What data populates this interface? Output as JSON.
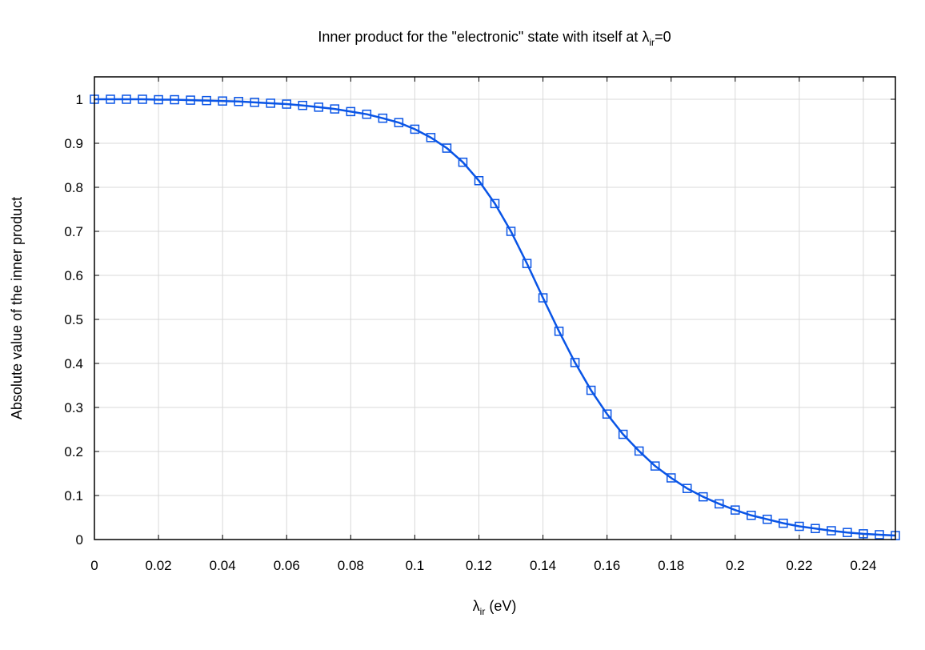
{
  "chart_data": {
    "type": "line",
    "title": {
      "pre": "Inner product for the \"electronic\" state with itself at λ",
      "sub": "ir",
      "post": "=0"
    },
    "xlabel": {
      "pre": "λ",
      "sub": "ir",
      "post": " (eV)"
    },
    "ylabel": "Absolute value of the inner product",
    "xlim": [
      0,
      0.25
    ],
    "ylim": [
      0,
      1.05
    ],
    "grid": true,
    "legend": "none",
    "x_ticks": [
      "0",
      "0.02",
      "0.04",
      "0.06",
      "0.08",
      "0.1",
      "0.12",
      "0.14",
      "0.16",
      "0.18",
      "0.2",
      "0.22",
      "0.24"
    ],
    "y_ticks": [
      "0",
      "0.1",
      "0.2",
      "0.3",
      "0.4",
      "0.5",
      "0.6",
      "0.7",
      "0.8",
      "0.9",
      "1"
    ],
    "series": [
      {
        "color": "#0a55e6",
        "marker": "square-open",
        "line": "solid",
        "x": [
          0,
          0.005,
          0.01,
          0.015,
          0.02,
          0.025,
          0.03,
          0.035,
          0.04,
          0.045,
          0.05,
          0.055,
          0.06,
          0.065,
          0.07,
          0.075,
          0.08,
          0.085,
          0.09,
          0.095,
          0.1,
          0.105,
          0.11,
          0.115,
          0.12,
          0.125,
          0.13,
          0.135,
          0.14,
          0.145,
          0.15,
          0.155,
          0.16,
          0.165,
          0.17,
          0.175,
          0.18,
          0.185,
          0.19,
          0.195,
          0.2,
          0.205,
          0.21,
          0.215,
          0.22,
          0.225,
          0.23,
          0.235,
          0.24,
          0.245,
          0.25
        ],
        "y": [
          1.0,
          1.0,
          1.0,
          1.0,
          0.999,
          0.999,
          0.998,
          0.997,
          0.996,
          0.995,
          0.993,
          0.991,
          0.989,
          0.986,
          0.982,
          0.978,
          0.972,
          0.966,
          0.957,
          0.947,
          0.932,
          0.913,
          0.889,
          0.857,
          0.815,
          0.763,
          0.7,
          0.627,
          0.549,
          0.473,
          0.402,
          0.339,
          0.285,
          0.239,
          0.201,
          0.167,
          0.14,
          0.116,
          0.097,
          0.081,
          0.067,
          0.055,
          0.046,
          0.037,
          0.03,
          0.025,
          0.02,
          0.016,
          0.013,
          0.011,
          0.009
        ]
      }
    ]
  }
}
